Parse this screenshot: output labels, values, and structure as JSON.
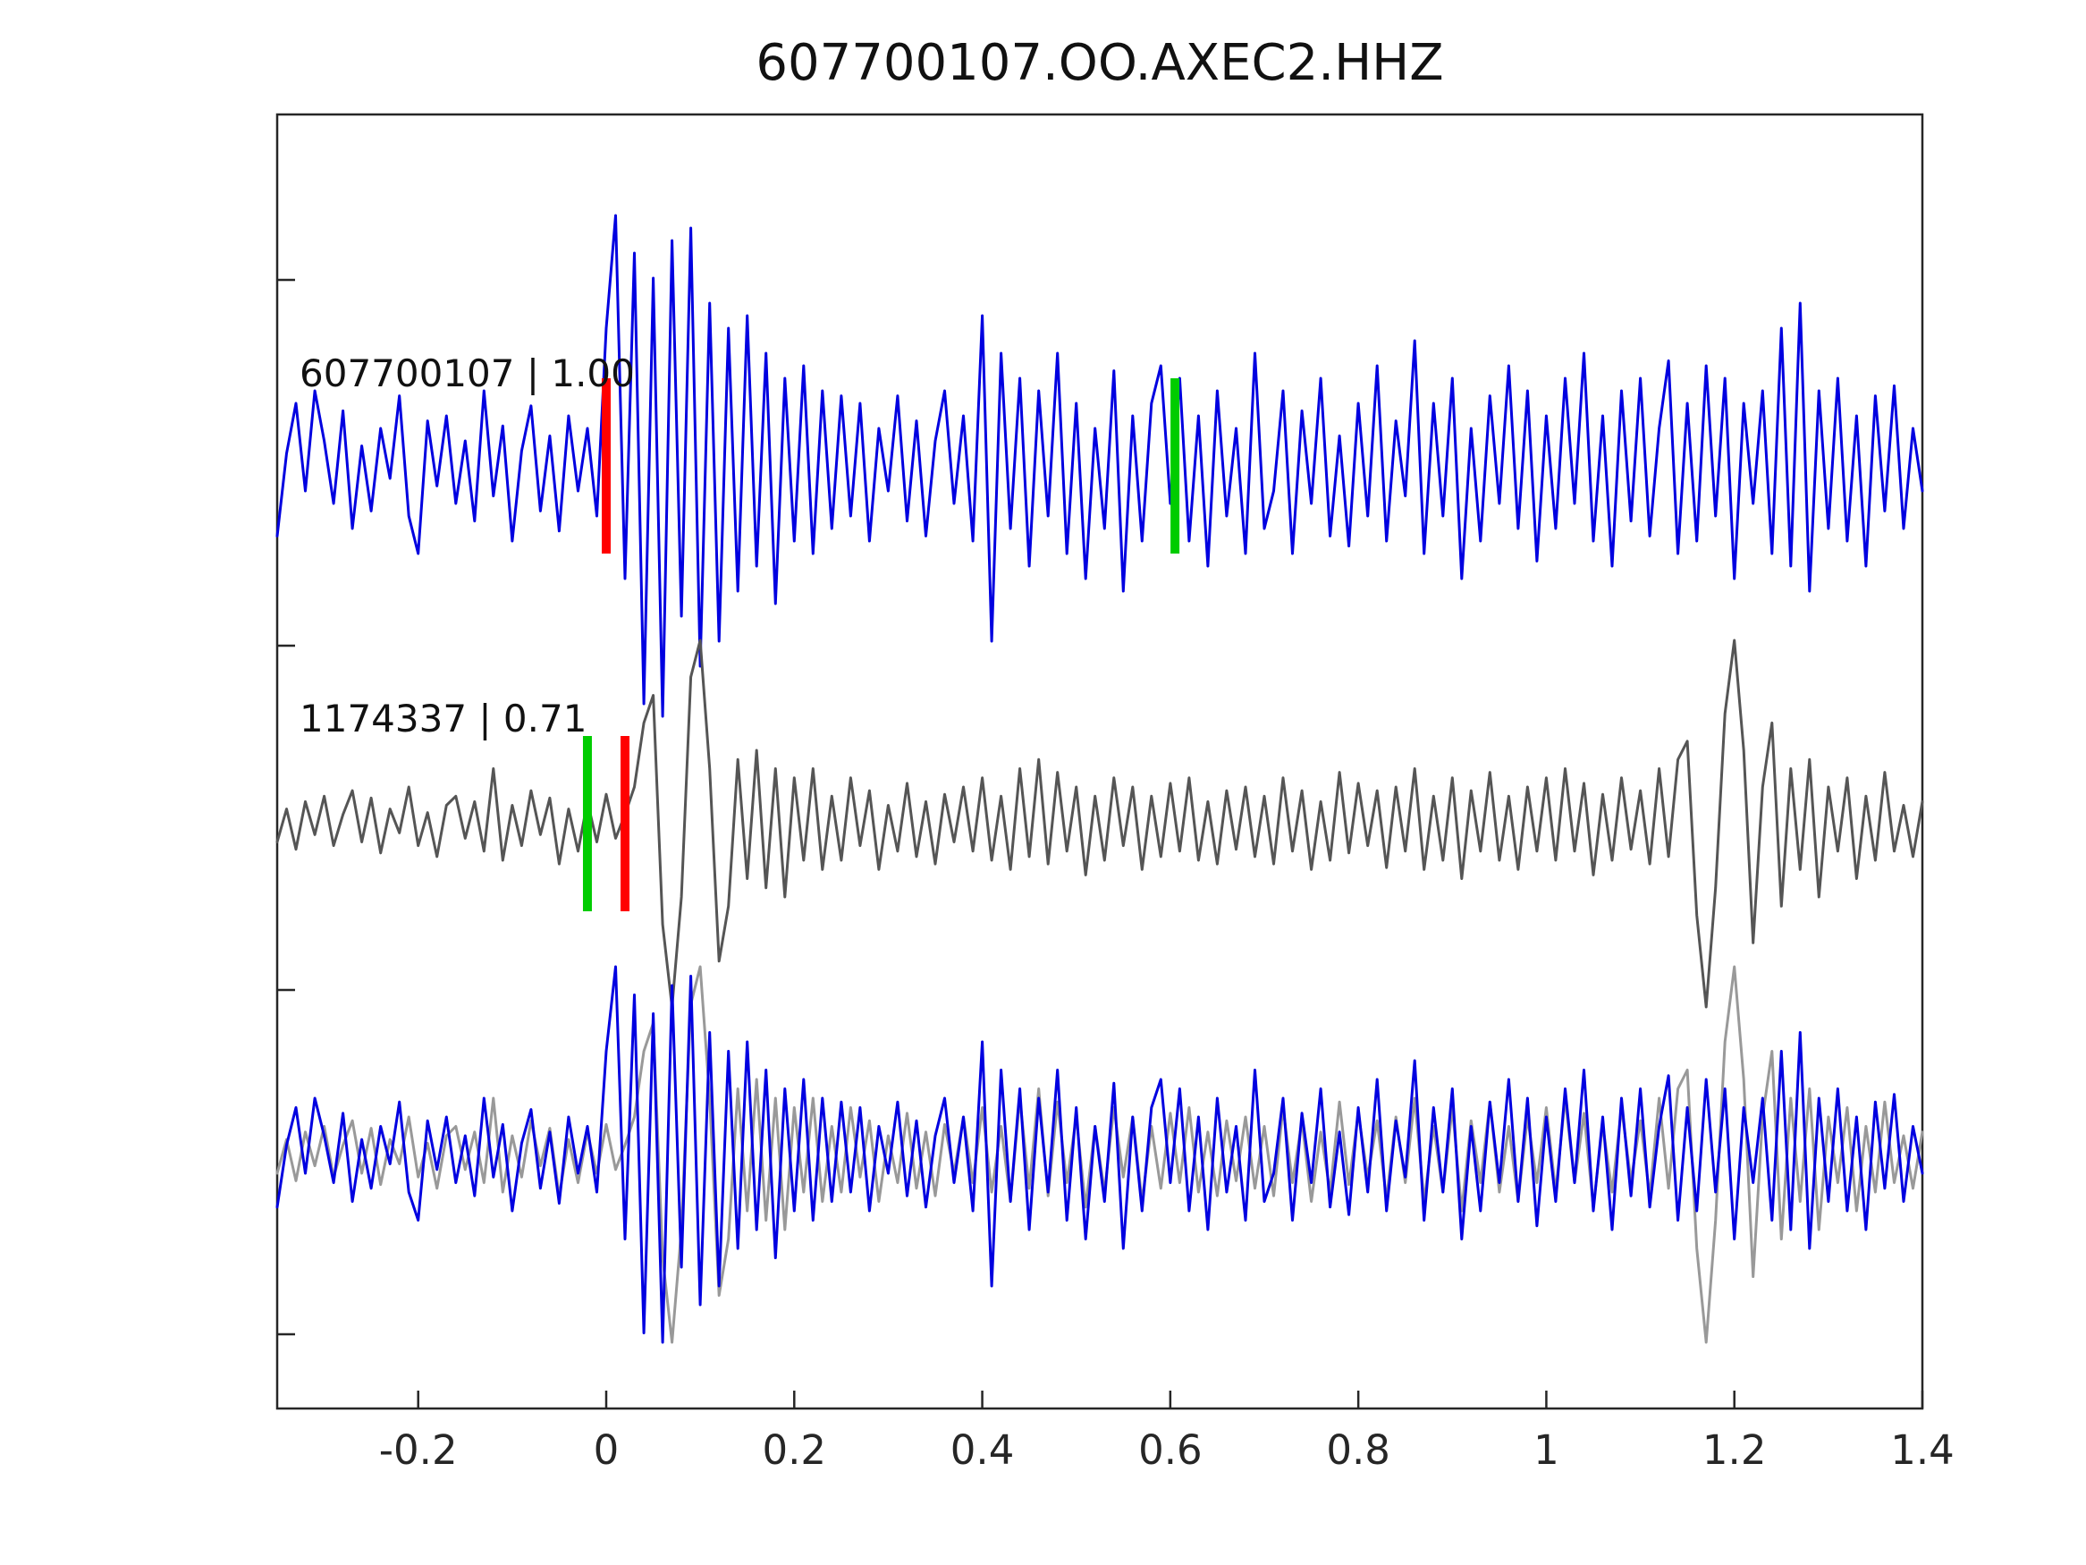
{
  "page": {
    "title": "607700107.OO.AXEC2.HHZ"
  },
  "chart_data": {
    "type": "line",
    "title": "607700107.OO.AXEC2.HHZ",
    "xlabel": "",
    "ylabel": "",
    "grid": false,
    "legend_position": "none",
    "xlim": [
      -0.35,
      1.4
    ],
    "x_start": -0.35,
    "x_step": 0.01,
    "x_ticks": [
      -0.2,
      0,
      0.2,
      0.4,
      0.6,
      0.8,
      1,
      1.2,
      1.4
    ],
    "x_tick_labels": [
      "-0.2",
      "0",
      "0.2",
      "0.4",
      "0.6",
      "0.8",
      "1",
      "1.2",
      "1.4"
    ],
    "colors": {
      "detection_blue": "#0000e0",
      "template_gray": "#555555",
      "template_overlay_gray": "#999999",
      "pick_red": "#ff0000",
      "pick_green": "#00cc00",
      "axis": "#262626"
    },
    "panels": [
      {
        "name": "detection",
        "label": "607700107 | 1.00",
        "traces": [
          {
            "series": "detection",
            "color": "#0000e0"
          }
        ],
        "markers": [
          {
            "x": 0.0,
            "color": "#ff0000"
          },
          {
            "x": 0.605,
            "color": "#00cc00"
          }
        ]
      },
      {
        "name": "template",
        "label": "1174337 | 0.71",
        "traces": [
          {
            "series": "template",
            "color": "#555555"
          }
        ],
        "markers": [
          {
            "x": -0.02,
            "color": "#00cc00"
          },
          {
            "x": 0.02,
            "color": "#ff0000"
          }
        ]
      },
      {
        "name": "overlay",
        "label": "",
        "traces": [
          {
            "series": "template",
            "color": "#999999"
          },
          {
            "series": "detection",
            "color": "#0000e0"
          }
        ],
        "markers": []
      }
    ],
    "series": {
      "detection": [
        -0.28,
        0.05,
        0.25,
        -0.1,
        0.3,
        0.1,
        -0.15,
        0.22,
        -0.25,
        0.08,
        -0.18,
        0.15,
        -0.05,
        0.28,
        -0.2,
        -0.35,
        0.18,
        -0.08,
        0.2,
        -0.15,
        0.1,
        -0.22,
        0.3,
        -0.12,
        0.16,
        -0.3,
        0.06,
        0.24,
        -0.18,
        0.12,
        -0.26,
        0.2,
        -0.1,
        0.15,
        -0.2,
        0.55,
        1.0,
        -0.45,
        0.85,
        -0.95,
        0.75,
        -1.0,
        0.9,
        -0.6,
        0.95,
        -0.8,
        0.65,
        -0.7,
        0.55,
        -0.5,
        0.6,
        -0.4,
        0.45,
        -0.55,
        0.35,
        -0.3,
        0.4,
        -0.35,
        0.3,
        -0.25,
        0.28,
        -0.2,
        0.25,
        -0.3,
        0.15,
        -0.1,
        0.28,
        -0.22,
        0.18,
        -0.28,
        0.1,
        0.3,
        -0.15,
        0.2,
        -0.3,
        0.6,
        -0.7,
        0.45,
        -0.25,
        0.35,
        -0.4,
        0.3,
        -0.2,
        0.45,
        -0.35,
        0.25,
        -0.45,
        0.15,
        -0.25,
        0.38,
        -0.5,
        0.2,
        -0.3,
        0.25,
        0.4,
        -0.15,
        0.35,
        -0.3,
        0.2,
        -0.4,
        0.3,
        -0.2,
        0.15,
        -0.35,
        0.45,
        -0.25,
        -0.1,
        0.3,
        -0.35,
        0.22,
        -0.15,
        0.35,
        -0.28,
        0.12,
        -0.32,
        0.25,
        -0.2,
        0.4,
        -0.3,
        0.18,
        -0.12,
        0.5,
        -0.35,
        0.25,
        -0.2,
        0.35,
        -0.45,
        0.15,
        -0.3,
        0.28,
        -0.15,
        0.4,
        -0.25,
        0.3,
        -0.38,
        0.2,
        -0.25,
        0.35,
        -0.15,
        0.45,
        -0.3,
        0.2,
        -0.4,
        0.3,
        -0.22,
        0.35,
        -0.28,
        0.15,
        0.42,
        -0.35,
        0.25,
        -0.3,
        0.4,
        -0.2,
        0.35,
        -0.45,
        0.25,
        -0.15,
        0.3,
        -0.35,
        0.55,
        -0.4,
        0.65,
        -0.5,
        0.3,
        -0.25,
        0.35,
        -0.3,
        0.2,
        -0.4,
        0.28,
        -0.18,
        0.32,
        -0.25,
        0.15,
        -0.1
      ],
      "template": [
        -0.1,
        0.08,
        -0.14,
        0.12,
        -0.06,
        0.15,
        -0.12,
        0.05,
        0.18,
        -0.1,
        0.14,
        -0.16,
        0.08,
        -0.05,
        0.2,
        -0.12,
        0.06,
        -0.18,
        0.1,
        0.15,
        -0.08,
        0.12,
        -0.15,
        0.3,
        -0.2,
        0.1,
        -0.12,
        0.18,
        -0.06,
        0.14,
        -0.22,
        0.08,
        -0.15,
        0.12,
        -0.1,
        0.16,
        -0.08,
        0.05,
        0.2,
        0.55,
        0.7,
        -0.55,
        -1.0,
        -0.4,
        0.8,
        1.0,
        0.3,
        -0.75,
        -0.45,
        0.35,
        -0.3,
        0.4,
        -0.35,
        0.3,
        -0.4,
        0.25,
        -0.2,
        0.3,
        -0.25,
        0.15,
        -0.2,
        0.25,
        -0.12,
        0.18,
        -0.25,
        0.1,
        -0.15,
        0.22,
        -0.18,
        0.12,
        -0.22,
        0.16,
        -0.1,
        0.2,
        -0.15,
        0.25,
        -0.2,
        0.15,
        -0.25,
        0.3,
        -0.18,
        0.35,
        -0.22,
        0.28,
        -0.15,
        0.2,
        -0.28,
        0.15,
        -0.2,
        0.25,
        -0.12,
        0.2,
        -0.25,
        0.15,
        -0.18,
        0.22,
        -0.15,
        0.25,
        -0.2,
        0.12,
        -0.22,
        0.18,
        -0.14,
        0.2,
        -0.18,
        0.15,
        -0.22,
        0.25,
        -0.15,
        0.18,
        -0.25,
        0.12,
        -0.2,
        0.28,
        -0.16,
        0.22,
        -0.12,
        0.18,
        -0.24,
        0.2,
        -0.15,
        0.3,
        -0.25,
        0.15,
        -0.2,
        0.25,
        -0.3,
        0.18,
        -0.15,
        0.28,
        -0.2,
        0.15,
        -0.25,
        0.2,
        -0.15,
        0.25,
        -0.2,
        0.3,
        -0.15,
        0.22,
        -0.28,
        0.16,
        -0.2,
        0.25,
        -0.14,
        0.18,
        -0.22,
        0.3,
        -0.18,
        0.35,
        0.45,
        -0.5,
        -1.0,
        -0.35,
        0.6,
        1.0,
        0.4,
        -0.65,
        0.2,
        0.55,
        -0.45,
        0.3,
        -0.25,
        0.35,
        -0.4,
        0.2,
        -0.15,
        0.25,
        -0.3,
        0.15,
        -0.2,
        0.28,
        -0.15,
        0.1,
        -0.18,
        0.12
      ]
    }
  }
}
